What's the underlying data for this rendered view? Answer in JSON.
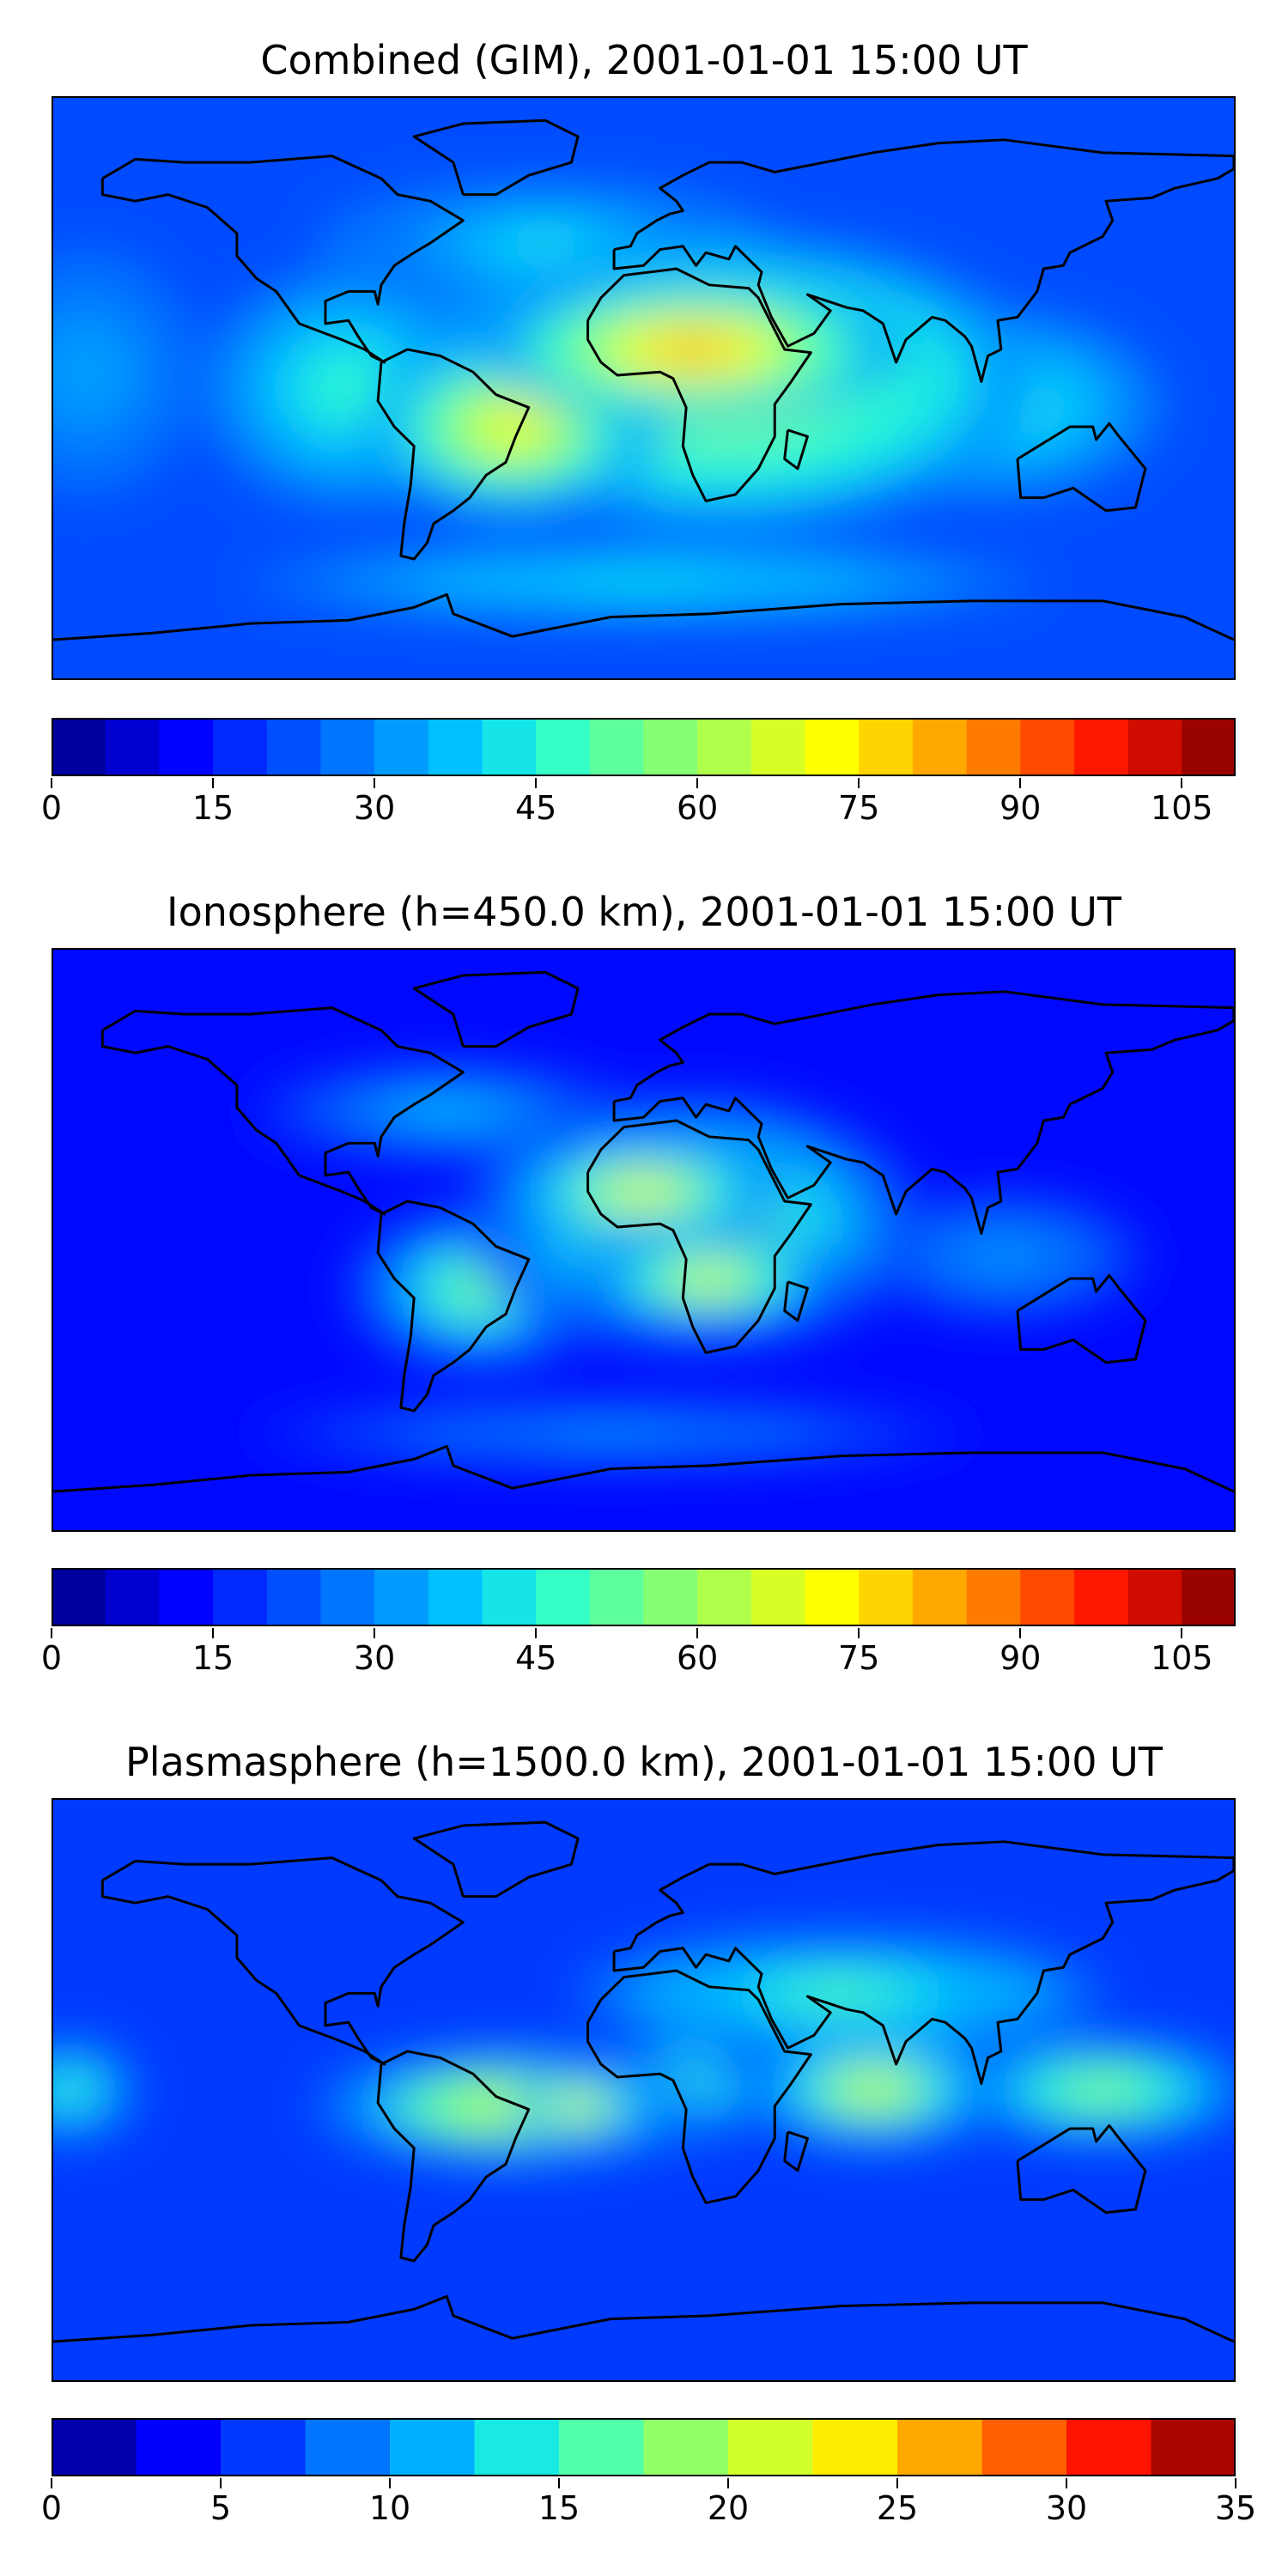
{
  "panels": [
    {
      "title": "Combined (GIM), 2001-01-01 15:00 UT",
      "colorbar": {
        "ticks": [
          "0",
          "15",
          "30",
          "45",
          "60",
          "75",
          "90",
          "105"
        ],
        "min": 0,
        "max": 110,
        "step": 5
      },
      "blobs": [
        {
          "lon": 25,
          "lat": 2,
          "rx": 95,
          "ry": 45,
          "level": 0.62
        },
        {
          "lon": 15,
          "lat": 12,
          "rx": 65,
          "ry": 22,
          "level": 0.75
        },
        {
          "lon": -40,
          "lat": -12,
          "rx": 45,
          "ry": 28,
          "level": 0.66
        },
        {
          "lon": -90,
          "lat": 0,
          "rx": 45,
          "ry": 38,
          "level": 0.42
        },
        {
          "lon": 105,
          "lat": -5,
          "rx": 55,
          "ry": 30,
          "level": 0.42
        },
        {
          "lon": -170,
          "lat": 5,
          "rx": 40,
          "ry": 45,
          "level": 0.3
        },
        {
          "lon": 0,
          "lat": -60,
          "rx": 120,
          "ry": 12,
          "level": 0.4
        },
        {
          "lon": -30,
          "lat": 45,
          "rx": 70,
          "ry": 20,
          "level": 0.38
        }
      ],
      "base_level": 0.2
    },
    {
      "title": "Ionosphere  (h=450.0 km), 2001-01-01 15:00 UT",
      "colorbar": {
        "ticks": [
          "0",
          "15",
          "30",
          "45",
          "60",
          "75",
          "90",
          "105"
        ],
        "min": 0,
        "max": 110,
        "step": 5
      },
      "blobs": [
        {
          "lon": 15,
          "lat": 5,
          "rx": 70,
          "ry": 40,
          "level": 0.55
        },
        {
          "lon": 0,
          "lat": 15,
          "rx": 45,
          "ry": 15,
          "level": 0.66
        },
        {
          "lon": 20,
          "lat": -12,
          "rx": 40,
          "ry": 15,
          "level": 0.65
        },
        {
          "lon": -50,
          "lat": -15,
          "rx": 40,
          "ry": 25,
          "level": 0.5
        },
        {
          "lon": 110,
          "lat": -5,
          "rx": 45,
          "ry": 20,
          "level": 0.3
        },
        {
          "lon": -60,
          "lat": 40,
          "rx": 60,
          "ry": 15,
          "level": 0.33
        },
        {
          "lon": -10,
          "lat": -60,
          "rx": 110,
          "ry": 10,
          "level": 0.3
        }
      ],
      "base_level": 0.12
    },
    {
      "title": "Plasmasphere (h=1500.0 km), 2001-01-01 15:00 UT",
      "colorbar": {
        "ticks": [
          "0",
          "5",
          "10",
          "15",
          "20",
          "25",
          "30",
          "35"
        ],
        "min": 0,
        "max": 35,
        "step": 2.5
      },
      "blobs": [
        {
          "lon": -40,
          "lat": -5,
          "rx": 60,
          "ry": 18,
          "level": 0.6
        },
        {
          "lon": -20,
          "lat": -5,
          "rx": 20,
          "ry": 10,
          "level": 0.68
        },
        {
          "lon": 70,
          "lat": 0,
          "rx": 40,
          "ry": 18,
          "level": 0.58
        },
        {
          "lon": 10,
          "lat": 0,
          "rx": 25,
          "ry": 15,
          "level": 0.56
        },
        {
          "lon": 140,
          "lat": 0,
          "rx": 45,
          "ry": 16,
          "level": 0.5
        },
        {
          "lon": 60,
          "lat": 30,
          "rx": 80,
          "ry": 18,
          "level": 0.46
        },
        {
          "lon": -175,
          "lat": 0,
          "rx": 20,
          "ry": 15,
          "level": 0.45
        }
      ],
      "base_level": 0.18
    }
  ]
}
